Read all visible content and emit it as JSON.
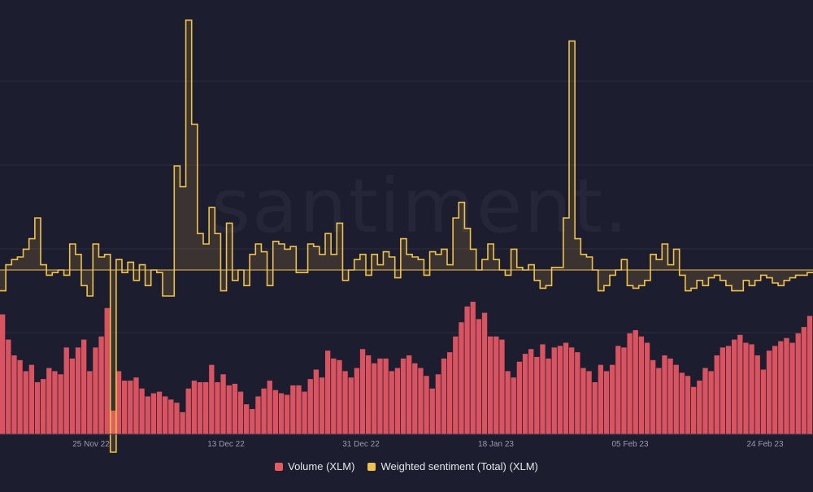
{
  "watermark": "santiment.",
  "legend": [
    {
      "label": "Volume (XLM)",
      "color": "#e55a63"
    },
    {
      "label": "Weighted sentiment (Total) (XLM)",
      "color": "#f0c24b"
    }
  ],
  "colors": {
    "background": "#1c1d2e",
    "grid": "#2b2d40",
    "volume": "#d95360",
    "sentiment": "#f0c24b",
    "axis_text": "#9a9cb0"
  },
  "chart_data": {
    "type": "bar",
    "x_tick_labels": [
      "25 Nov 22",
      "13 Dec 22",
      "31 Dec 22",
      "18 Jan 23",
      "05 Feb 23",
      "24 Feb 23"
    ],
    "x_range": [
      "2022-11-16",
      "2023-03-02"
    ],
    "y_axis_labels_shown": false,
    "grid": true,
    "legend_position": "bottom",
    "series": [
      {
        "name": "Volume (XLM)",
        "type": "bar",
        "values": [
          0.76,
          0.6,
          0.5,
          0.47,
          0.4,
          0.44,
          0.33,
          0.35,
          0.42,
          0.4,
          0.38,
          0.55,
          0.48,
          0.55,
          0.6,
          0.4,
          0.55,
          0.62,
          0.8,
          0.15,
          0.4,
          0.34,
          0.34,
          0.36,
          0.29,
          0.24,
          0.26,
          0.27,
          0.24,
          0.22,
          0.2,
          0.14,
          0.29,
          0.34,
          0.33,
          0.33,
          0.44,
          0.33,
          0.38,
          0.31,
          0.32,
          0.27,
          0.19,
          0.16,
          0.24,
          0.29,
          0.34,
          0.28,
          0.26,
          0.25,
          0.31,
          0.31,
          0.27,
          0.35,
          0.41,
          0.36,
          0.53,
          0.48,
          0.47,
          0.4,
          0.36,
          0.42,
          0.54,
          0.5,
          0.45,
          0.48,
          0.48,
          0.4,
          0.42,
          0.48,
          0.5,
          0.45,
          0.42,
          0.37,
          0.29,
          0.38,
          0.48,
          0.52,
          0.62,
          0.71,
          0.81,
          0.84,
          0.73,
          0.77,
          0.62,
          0.62,
          0.6,
          0.4,
          0.36,
          0.46,
          0.51,
          0.54,
          0.49,
          0.57,
          0.48,
          0.55,
          0.56,
          0.58,
          0.55,
          0.52,
          0.42,
          0.4,
          0.33,
          0.44,
          0.4,
          0.44,
          0.56,
          0.55,
          0.64,
          0.66,
          0.62,
          0.58,
          0.47,
          0.42,
          0.5,
          0.48,
          0.44,
          0.39,
          0.37,
          0.3,
          0.34,
          0.42,
          0.4,
          0.5,
          0.55,
          0.56,
          0.6,
          0.63,
          0.58,
          0.57,
          0.5,
          0.41,
          0.53,
          0.56,
          0.59,
          0.61,
          0.58,
          0.64,
          0.68,
          0.75
        ]
      },
      {
        "name": "Weighted sentiment (Total) (XLM)",
        "type": "line",
        "baseline": 0,
        "values": [
          -0.4,
          0.1,
          0.2,
          0.25,
          0.4,
          0.6,
          1.0,
          0.1,
          -0.1,
          -0.05,
          0.0,
          -0.1,
          0.5,
          0.3,
          -0.3,
          -0.5,
          0.5,
          0.25,
          0.3,
          -3.5,
          0.2,
          -0.05,
          0.15,
          -0.2,
          0.1,
          -0.3,
          0.0,
          -0.05,
          -0.5,
          -0.5,
          2.0,
          1.6,
          4.8,
          2.8,
          0.7,
          0.5,
          1.2,
          0.7,
          -0.4,
          0.9,
          -0.2,
          0.0,
          -0.3,
          0.3,
          0.5,
          0.35,
          -0.3,
          0.55,
          0.5,
          0.4,
          0.45,
          -0.05,
          -0.05,
          0.5,
          0.45,
          0.3,
          0.7,
          0.3,
          0.9,
          -0.2,
          0.0,
          0.2,
          0.3,
          -0.1,
          0.3,
          0.1,
          0.35,
          0.25,
          -0.15,
          0.6,
          0.3,
          0.25,
          0.2,
          -0.1,
          0.35,
          0.3,
          0.4,
          0.1,
          1.0,
          1.3,
          0.8,
          0.4,
          0.0,
          0.2,
          0.5,
          0.2,
          0.0,
          -0.1,
          0.4,
          0.05,
          0.0,
          0.1,
          -0.2,
          -0.35,
          -0.3,
          0.05,
          0.05,
          1.0,
          4.4,
          0.6,
          0.3,
          0.25,
          0.0,
          -0.4,
          -0.3,
          -0.1,
          0.0,
          0.2,
          -0.3,
          -0.35,
          -0.3,
          -0.2,
          0.3,
          0.2,
          0.5,
          0.1,
          0.4,
          -0.1,
          -0.4,
          -0.35,
          -0.2,
          -0.3,
          -0.15,
          -0.1,
          -0.2,
          -0.3,
          -0.4,
          -0.4,
          -0.2,
          -0.3,
          -0.2,
          -0.1,
          -0.15,
          -0.25,
          -0.3,
          -0.2,
          -0.15,
          -0.1,
          -0.1,
          -0.05
        ]
      }
    ]
  }
}
